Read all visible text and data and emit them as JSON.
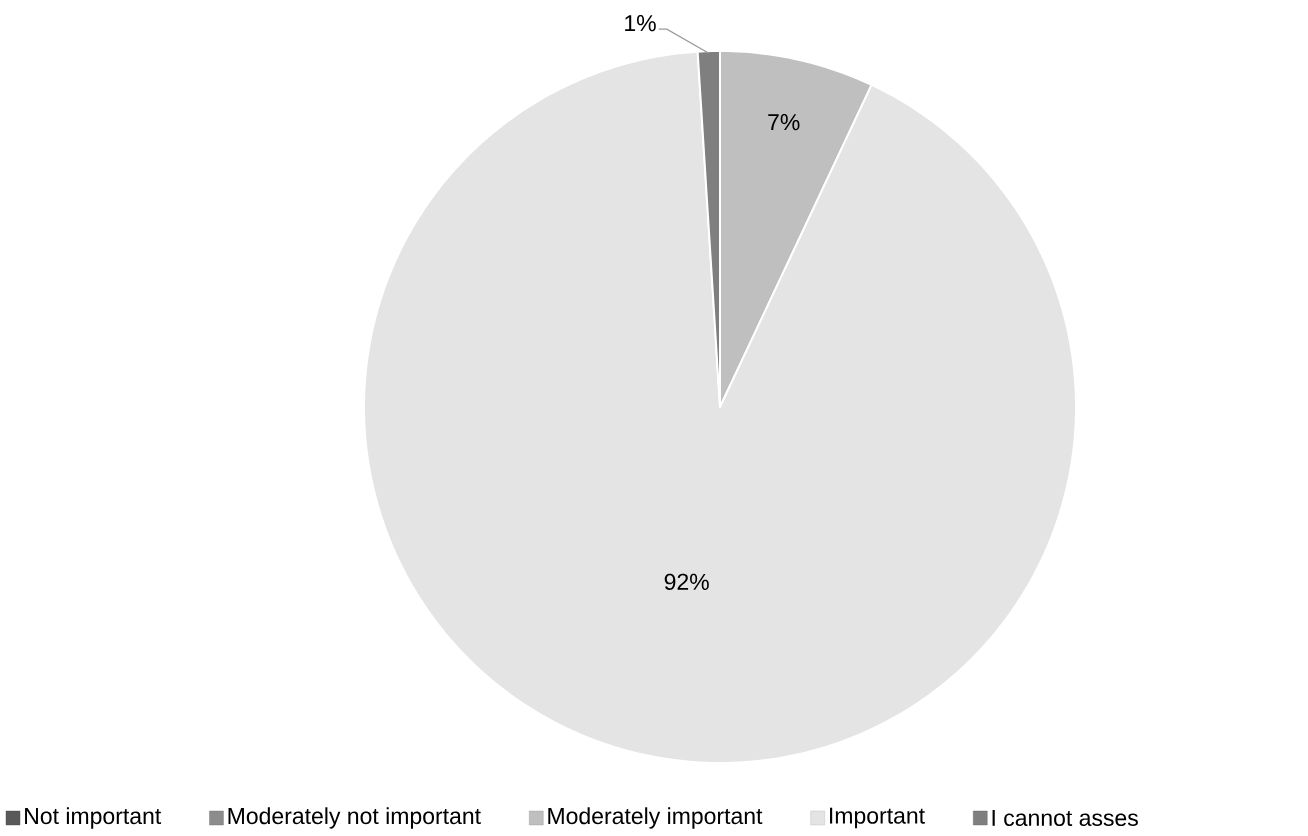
{
  "chart_data": {
    "type": "pie",
    "categories": [
      "Not important",
      "Moderately not important",
      "Moderately important",
      "Important",
      "I cannot asses"
    ],
    "values": [
      0,
      0,
      7,
      92,
      1
    ],
    "colors": [
      "#595959",
      "#8c8c8c",
      "#bfbfbf",
      "#e4e4e4",
      "#7f7f7f"
    ],
    "value_labels": [
      null,
      null,
      "7%",
      "92%",
      "1%"
    ],
    "legend": "bottom"
  }
}
